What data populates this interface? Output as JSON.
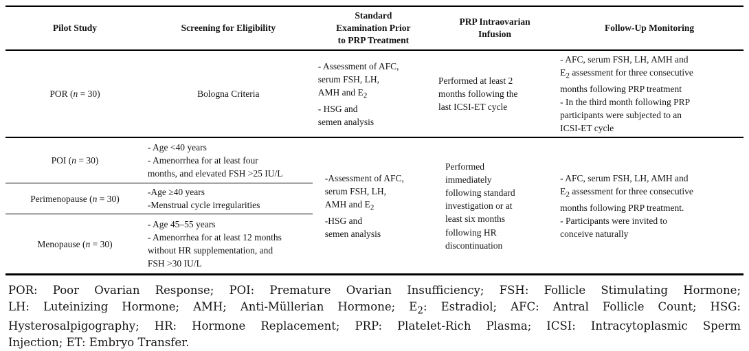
{
  "colors": {
    "background": "#ffffff",
    "text": "#141414",
    "rule": "#000000"
  },
  "header": {
    "pilot_study": "Pilot Study",
    "screening": "Screening for Eligibility",
    "examination": "Standard<br>Examination Prior<br>to PRP Treatment",
    "infusion": "PRP Intraovarian<br>Infusion",
    "follow_up": "Follow-Up Monitoring"
  },
  "rows": {
    "por": {
      "study": "POR (<i>n</i> = 30)",
      "screening": "Bologna Criteria",
      "examination": "- Assessment of AFC,<br>serum FSH, LH,<br>AMH and E<sub>2</sub><br>- HSG and<br>semen analysis",
      "infusion": "Performed at least 2<br>months following the<br>last ICSI-ET cycle",
      "follow_up": "- AFC, serum FSH, LH, AMH and<br>E<sub>2</sub> assessment for three consecutive<br>months following PRP treatment<br>- In the third month following PRP<br>participants were subjected to an<br>ICSI-ET cycle"
    },
    "poi": {
      "study": "POI (<i>n</i> = 30)",
      "screening": "- Age &lt;40 years<br>- Amenorrhea for at least four<br>months, and elevated FSH &gt;25 IU/L"
    },
    "perimenopause": {
      "study": "Perimenopause (<i>n</i> = 30)",
      "screening": "-Age ≥40 years<br>-Menstrual cycle irregularities"
    },
    "menopause": {
      "study": "Menopause (<i>n</i> = 30)",
      "screening": "- Age 45–55 years<br>- Amenorrhea for at least 12 months<br>without HR supplementation, and<br>FSH &gt;30 IU/L"
    },
    "shared": {
      "examination": "-Assessment of AFC,<br>serum FSH, LH,<br>AMH and E<sub>2</sub><br>-HSG and<br>semen analysis",
      "infusion": "Performed<br>immediately<br>following standard<br>investigation or at<br>least six months<br>following HR<br>discontinuation",
      "follow_up": "- AFC, serum FSH, LH, AMH and<br>E<sub>2</sub> assessment for three consecutive<br>months following PRP treatment.<br>- Participants were invited to<br>conceive naturally"
    }
  },
  "footnote": {
    "lines": [
      "POR: Poor Ovarian Response; POI: Premature Ovarian Insufficiency; FSH: Follicle Stimulating Hormone;",
      "LH: Luteinizing Hormone; AMH; Anti-Müllerian Hormone; E<sub>2</sub>: Estradiol; AFC: Antral Follicle Count; HSG:",
      "Hysterosalpigography; HR: Hormone Replacement; PRP: Platelet-Rich Plasma; ICSI: Intracytoplasmic Sperm",
      "Injection; ET: Embryo Transfer."
    ]
  }
}
